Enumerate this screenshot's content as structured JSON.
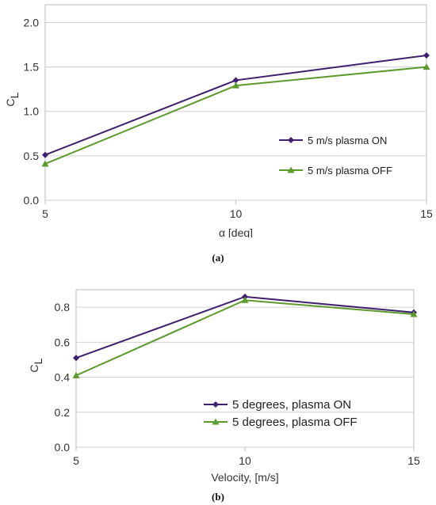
{
  "chart_data": [
    {
      "type": "line",
      "caption": "(a)",
      "x": [
        5,
        10,
        15
      ],
      "xlabel": "α [deg]",
      "ylabel_main": "C",
      "ylabel_sub": "L",
      "xlim": [
        5,
        15
      ],
      "ylim": [
        0,
        2.2
      ],
      "x_ticks": [
        "5",
        "10",
        "15"
      ],
      "y_ticks": [
        "0.0",
        "0.5",
        "1.0",
        "1.5",
        "2.0"
      ],
      "y_tick_values": [
        0,
        0.5,
        1.0,
        1.5,
        2.0
      ],
      "grid": "horizontal",
      "legend_position": "right",
      "series": [
        {
          "name": "5 m/s plasma ON",
          "values": [
            0.51,
            1.35,
            1.63
          ],
          "color": "#3f1f6e",
          "marker": "diamond"
        },
        {
          "name": "5 m/s plasma OFF",
          "values": [
            0.41,
            1.29,
            1.5
          ],
          "color": "#5c9a2b",
          "marker": "triangle"
        }
      ]
    },
    {
      "type": "line",
      "caption": "(b)",
      "x": [
        5,
        10,
        15
      ],
      "xlabel": "Velocity, [m/s]",
      "ylabel_main": "C",
      "ylabel_sub": "L",
      "xlim": [
        5,
        15
      ],
      "ylim": [
        0,
        0.9
      ],
      "x_ticks": [
        "5",
        "10",
        "15"
      ],
      "y_ticks": [
        "0.0",
        "0.2",
        "0.4",
        "0.6",
        "0.8"
      ],
      "y_tick_values": [
        0,
        0.2,
        0.4,
        0.6,
        0.8
      ],
      "grid": "horizontal",
      "legend_position": "bottom-right",
      "series": [
        {
          "name": "5 degrees, plasma ON",
          "values": [
            0.51,
            0.86,
            0.77
          ],
          "color": "#3f1f6e",
          "marker": "diamond"
        },
        {
          "name": "5 degrees, plasma OFF",
          "values": [
            0.41,
            0.84,
            0.76
          ],
          "color": "#5c9a2b",
          "marker": "triangle"
        }
      ]
    }
  ]
}
